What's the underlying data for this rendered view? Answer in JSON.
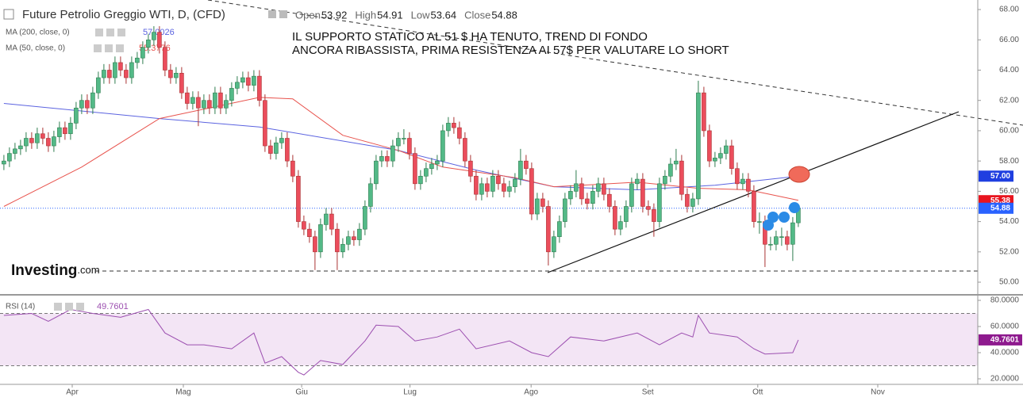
{
  "chart_data": [
    {
      "type": "candlestick",
      "title": "Future Petrolio Greggio WTI, D, (CFD)",
      "ohlc": [
        {
          "name": "Open",
          "value": 53.92
        },
        {
          "name": "High",
          "value": 54.91
        },
        {
          "name": "Low",
          "value": 53.64
        },
        {
          "name": "Close",
          "value": 54.88
        }
      ],
      "annotation": [
        "IL SUPPORTO STATICO AL 51 $ HA TENUTO, TREND DI FONDO",
        "ANCORA RIBASSISTA, PRIMA RESISTENZA AI 57$ PER VALUTARE LO SHORT"
      ],
      "logo": [
        "Investing",
        ".com"
      ],
      "open": [
        57.8,
        58.0,
        58.5,
        58.8,
        59.0,
        59.5,
        59.2,
        59.8,
        59.5,
        59.0,
        59.6,
        60.2,
        59.8,
        60.5,
        61.5,
        62.0,
        61.5,
        62.5,
        63.5,
        64.0,
        63.5,
        64.5,
        64.0,
        63.5,
        64.5,
        64.8,
        65.5,
        66.0,
        66.5,
        65.5,
        64.0,
        63.5,
        63.8,
        62.5,
        61.8,
        62.2,
        61.5,
        62.0,
        61.5,
        62.5,
        61.5,
        62.0,
        62.8,
        63.2,
        63.5,
        63.0,
        63.6,
        62.0,
        59.0,
        58.5,
        59.2,
        59.5,
        58.0,
        57.0,
        54.0,
        53.5,
        53.0,
        52.0,
        53.8,
        54.5,
        53.5,
        52.0,
        52.5,
        53.0,
        52.8,
        53.5,
        55.0,
        56.5,
        58.0,
        58.3,
        58.0,
        59.0,
        59.5,
        59.5,
        58.5,
        56.5,
        57.0,
        57.5,
        57.8,
        58.0,
        60.0,
        60.5,
        60.2,
        59.5,
        58.0,
        57.0,
        55.8,
        56.5,
        56.0,
        57.0,
        56.5,
        56.0,
        56.3,
        56.8,
        58.0,
        57.5,
        54.5,
        55.5,
        55.0,
        52.0,
        53.0,
        54.0,
        55.5,
        56.0,
        56.5,
        55.5,
        55.2,
        56.0,
        56.5,
        55.8,
        55.0,
        53.5,
        54.0,
        55.0,
        56.5,
        56.8,
        55.0,
        54.8,
        54.0,
        56.5,
        57.0,
        57.8,
        58.0,
        55.8,
        55.0,
        55.5,
        62.5,
        60.0,
        58.0,
        58.2,
        58.5,
        59.0,
        57.5,
        56.5,
        56.8,
        56.0,
        54.0,
        54.0,
        52.5,
        52.5,
        53.0,
        53.0,
        52.5,
        53.92
      ],
      "high": [
        58.4,
        58.9,
        59.2,
        59.4,
        59.9,
        59.9,
        60.2,
        60.2,
        59.9,
        60.0,
        60.6,
        60.6,
        60.9,
        61.9,
        62.4,
        62.4,
        62.9,
        63.9,
        64.4,
        64.4,
        64.9,
        64.9,
        64.4,
        64.9,
        65.2,
        65.9,
        66.4,
        66.9,
        66.9,
        65.9,
        64.4,
        64.2,
        64.2,
        62.9,
        62.6,
        62.6,
        62.4,
        62.4,
        62.9,
        62.9,
        62.4,
        63.2,
        63.6,
        63.9,
        63.9,
        64.0,
        64.0,
        62.4,
        59.4,
        59.6,
        59.9,
        59.9,
        58.4,
        57.4,
        54.4,
        53.9,
        53.4,
        54.2,
        54.9,
        54.9,
        53.9,
        52.9,
        53.4,
        53.4,
        53.9,
        55.4,
        56.9,
        58.4,
        58.7,
        58.7,
        59.4,
        59.9,
        60.1,
        59.9,
        58.9,
        57.4,
        57.9,
        58.2,
        58.4,
        60.4,
        60.9,
        60.9,
        60.6,
        59.9,
        58.4,
        57.4,
        56.9,
        56.9,
        57.4,
        57.4,
        56.9,
        56.7,
        57.2,
        58.8,
        58.4,
        57.9,
        55.9,
        55.9,
        55.4,
        53.4,
        54.4,
        55.9,
        56.4,
        57.4,
        56.9,
        55.9,
        56.4,
        56.9,
        56.9,
        56.2,
        55.4,
        54.4,
        55.4,
        56.9,
        57.2,
        57.2,
        55.4,
        55.2,
        56.9,
        57.4,
        58.2,
        58.8,
        58.4,
        56.2,
        55.9,
        63.3,
        62.9,
        60.4,
        58.6,
        58.9,
        59.4,
        59.4,
        57.9,
        57.2,
        57.2,
        56.4,
        54.6,
        54.4,
        53.0,
        53.4,
        53.6,
        53.4,
        54.3,
        54.91
      ],
      "low": [
        57.4,
        57.6,
        58.1,
        58.4,
        58.6,
        58.8,
        58.8,
        59.1,
        58.6,
        58.6,
        59.2,
        59.4,
        59.4,
        60.1,
        61.1,
        61.1,
        61.1,
        62.1,
        63.1,
        63.1,
        63.1,
        63.6,
        63.1,
        63.1,
        64.1,
        64.4,
        65.1,
        65.6,
        65.1,
        63.6,
        63.1,
        63.1,
        62.1,
        61.4,
        61.4,
        60.3,
        61.1,
        61.1,
        61.1,
        61.1,
        61.1,
        61.6,
        62.4,
        62.8,
        62.6,
        62.6,
        61.6,
        58.6,
        58.1,
        58.1,
        58.8,
        57.6,
        56.6,
        53.6,
        53.1,
        52.6,
        50.8,
        51.6,
        53.4,
        53.1,
        50.8,
        51.6,
        52.1,
        52.4,
        52.4,
        53.1,
        54.6,
        56.1,
        57.6,
        57.6,
        57.6,
        58.6,
        59.1,
        58.1,
        56.1,
        56.1,
        56.6,
        57.1,
        57.4,
        57.6,
        59.6,
        59.8,
        59.1,
        57.6,
        56.6,
        55.4,
        55.4,
        55.6,
        55.6,
        56.1,
        55.6,
        55.6,
        55.9,
        56.4,
        57.1,
        54.1,
        54.1,
        54.6,
        51.1,
        51.6,
        52.6,
        53.6,
        55.1,
        55.6,
        55.1,
        54.8,
        54.8,
        55.6,
        55.4,
        54.6,
        53.1,
        53.1,
        53.6,
        54.6,
        56.1,
        54.6,
        54.4,
        53.0,
        53.6,
        56.1,
        56.6,
        57.4,
        55.4,
        54.6,
        54.6,
        55.1,
        59.6,
        57.6,
        57.6,
        57.8,
        58.1,
        57.1,
        56.1,
        56.1,
        55.6,
        53.6,
        53.2,
        51.0,
        52.1,
        52.1,
        52.4,
        52.1,
        51.4,
        53.64
      ],
      "close": [
        58.0,
        58.5,
        58.8,
        59.0,
        59.5,
        59.2,
        59.8,
        59.5,
        59.0,
        59.6,
        60.2,
        59.8,
        60.5,
        61.5,
        62.0,
        61.5,
        62.5,
        63.5,
        64.0,
        63.5,
        64.5,
        64.0,
        63.5,
        64.5,
        64.8,
        65.5,
        66.0,
        66.5,
        65.5,
        64.0,
        63.5,
        63.8,
        62.5,
        61.8,
        62.2,
        61.5,
        62.0,
        61.5,
        62.5,
        61.5,
        62.0,
        62.8,
        63.2,
        63.5,
        63.0,
        63.6,
        62.0,
        59.0,
        58.5,
        59.2,
        59.5,
        58.0,
        57.0,
        54.0,
        53.5,
        53.0,
        52.0,
        53.8,
        54.5,
        53.5,
        52.0,
        52.5,
        53.0,
        52.8,
        53.5,
        55.0,
        56.5,
        58.0,
        58.3,
        58.0,
        59.0,
        59.5,
        59.5,
        58.5,
        56.5,
        57.0,
        57.5,
        57.8,
        58.0,
        60.0,
        60.5,
        60.2,
        59.5,
        58.0,
        57.0,
        55.8,
        56.5,
        56.0,
        57.0,
        56.5,
        56.0,
        56.3,
        56.8,
        58.0,
        57.5,
        54.5,
        55.5,
        55.0,
        52.0,
        53.0,
        54.0,
        55.5,
        56.0,
        56.5,
        55.5,
        55.2,
        56.0,
        56.5,
        55.8,
        55.0,
        53.5,
        54.0,
        55.0,
        56.5,
        56.8,
        55.0,
        54.8,
        54.0,
        56.5,
        57.0,
        57.8,
        58.0,
        55.8,
        55.0,
        55.5,
        62.5,
        60.0,
        58.0,
        58.2,
        58.5,
        59.0,
        57.5,
        56.5,
        56.8,
        56.0,
        54.0,
        54.0,
        52.5,
        52.5,
        53.0,
        53.0,
        52.5,
        53.92,
        54.88
      ],
      "up_color": "#53b987",
      "down_color": "#eb4d5c",
      "series": [
        {
          "name": "MA (200, close, 0)",
          "color": "#5b63e0",
          "last": 57.0026,
          "x": [
            0,
            28,
            46,
            71,
            85,
            99,
            114,
            128,
            143
          ],
          "values": [
            61.8,
            60.8,
            60.25,
            58.7,
            57.4,
            56.3,
            56.1,
            56.4,
            57.0
          ]
        },
        {
          "name": "MA (50, close, 0)",
          "color": "#e8534d",
          "last": 55.3776,
          "x": [
            0,
            14,
            28,
            46,
            52,
            61,
            71,
            79,
            92,
            99,
            114,
            125,
            134,
            143
          ],
          "values": [
            55.0,
            57.6,
            60.8,
            62.2,
            62.1,
            59.7,
            58.7,
            57.6,
            56.9,
            56.3,
            56.6,
            56.2,
            56.1,
            55.4
          ]
        }
      ],
      "price_tags": [
        {
          "value": 57,
          "label": "57.00",
          "color": "#1f3fe0"
        },
        {
          "value": 55.38,
          "label": "55.38",
          "color": "#e8141e"
        },
        {
          "value": 54.88,
          "label": "54.88",
          "color": "#2962ff"
        }
      ],
      "xlim": [
        -0.7,
        175.3
      ],
      "xticks": [
        {
          "value": 12.3,
          "label": "Apr"
        },
        {
          "value": 32.3,
          "label": "Mag"
        },
        {
          "value": 53.6,
          "label": "Giu"
        },
        {
          "value": 73.1,
          "label": "Lug"
        },
        {
          "value": 94.9,
          "label": "Ago"
        },
        {
          "value": 115.9,
          "label": "Set"
        },
        {
          "value": 135.7,
          "label": "Ott"
        },
        {
          "value": 157.3,
          "label": "Nov"
        }
      ],
      "ylim": [
        49.27,
        68.63
      ],
      "yticks": [
        {
          "value": 50,
          "label": "50.00"
        },
        {
          "value": 52,
          "label": "52.00"
        },
        {
          "value": 54,
          "label": "54.00"
        },
        {
          "value": 56,
          "label": "56.00"
        },
        {
          "value": 58,
          "label": "58.00"
        },
        {
          "value": 60,
          "label": "60.00"
        },
        {
          "value": 62,
          "label": "62.00"
        },
        {
          "value": 64,
          "label": "64.00"
        },
        {
          "value": 66,
          "label": "66.00"
        },
        {
          "value": 68,
          "label": "68.00"
        }
      ]
    },
    {
      "type": "line",
      "series": [
        {
          "name": "RSI (14)",
          "color": "#9c4fb0",
          "last": 49.7601,
          "x": [
            0,
            5,
            8,
            12,
            16,
            21,
            26,
            29,
            33,
            36,
            41,
            45,
            47,
            50,
            53,
            54,
            57,
            61,
            65,
            67,
            71,
            74,
            78,
            82,
            85,
            91,
            95,
            98,
            102,
            108,
            114,
            118,
            122,
            124,
            125,
            127,
            132,
            135,
            137,
            142,
            143
          ],
          "values": [
            68.5,
            70,
            64,
            73,
            70,
            67,
            73,
            55,
            46,
            46,
            43,
            55,
            32,
            37,
            25,
            23,
            34,
            31,
            49,
            61,
            60,
            49,
            52,
            58,
            43,
            49,
            40,
            37,
            52,
            49,
            55,
            46,
            55,
            52,
            68.5,
            55,
            52,
            43,
            39,
            40,
            49.7601
          ]
        }
      ],
      "band": [
        30,
        70
      ],
      "band_color": "#f3e5f5",
      "ylim": [
        15.76,
        84.24
      ],
      "yticks": [
        {
          "value": 20,
          "label": "20.0000"
        },
        {
          "value": 40,
          "label": "40.0000"
        },
        {
          "value": 60,
          "label": "60.0000"
        },
        {
          "value": 80,
          "label": "80.0000"
        }
      ]
    }
  ]
}
